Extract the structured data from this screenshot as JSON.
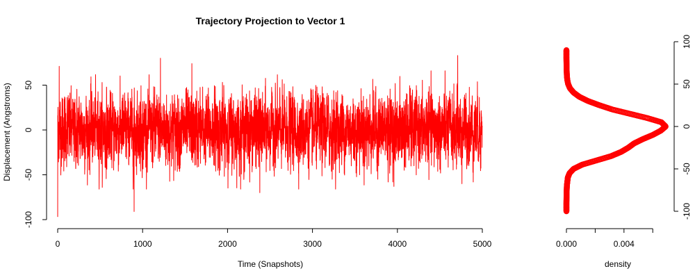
{
  "chart_data": [
    {
      "type": "line",
      "title": "Trajectory Projection to Vector 1",
      "xlabel": "Time (Snapshots)",
      "ylabel": "Displacement (Angstroms)",
      "xlim": [
        0,
        5000
      ],
      "ylim": [
        -100,
        100
      ],
      "x_ticks": [
        0,
        1000,
        2000,
        3000,
        4000,
        5000
      ],
      "y_ticks": [
        -100,
        -50,
        0,
        50
      ],
      "grid": false,
      "series": [
        {
          "color": "#ff0000",
          "n_points": 5000,
          "summary": {
            "min": -97,
            "max": 83,
            "mean": 0,
            "sd": 20
          },
          "extremes": [
            {
              "x": 0,
              "y": -97
            },
            {
              "x": 18,
              "y": 71
            },
            {
              "x": 900,
              "y": -91
            },
            {
              "x": 1210,
              "y": 80
            },
            {
              "x": 1580,
              "y": 74
            },
            {
              "x": 2380,
              "y": -70
            },
            {
              "x": 4710,
              "y": 83
            },
            {
              "x": 4760,
              "y": -60
            },
            {
              "x": 4995,
              "y": 0
            }
          ]
        }
      ]
    },
    {
      "type": "scatter",
      "title": "",
      "xlabel": "density",
      "ylabel": "",
      "xlim": [
        0,
        0.0071
      ],
      "ylim": [
        -100,
        100
      ],
      "x_ticks": [
        0,
        0.002,
        0.004,
        0.006
      ],
      "x_tick_labels": [
        "0.000",
        "",
        "0.004",
        ""
      ],
      "y_ticks": [
        -100,
        -50,
        0,
        50,
        100
      ],
      "y_axis_side": "right",
      "grid": false,
      "series": [
        {
          "color": "#ff0000",
          "y_values": [
            -100,
            -90,
            -80,
            -70,
            -60,
            -55,
            -50,
            -45,
            -40,
            -35,
            -30,
            -25,
            -20,
            -15,
            -10,
            -5,
            0,
            5,
            10,
            15,
            20,
            25,
            30,
            35,
            40,
            45,
            50,
            55,
            60,
            70,
            80,
            90
          ],
          "density_values": [
            0.0,
            0.0,
            1e-05,
            3e-05,
            0.0001,
            0.00022,
            0.0005,
            0.0011,
            0.0021,
            0.0031,
            0.0038,
            0.0043,
            0.0047,
            0.0053,
            0.006,
            0.00655,
            0.0069,
            0.0066,
            0.0056,
            0.0044,
            0.0032,
            0.0023,
            0.0015,
            0.0009,
            0.0005,
            0.00025,
            0.00012,
            6e-05,
            3e-05,
            1e-05,
            0.0,
            0.0
          ]
        }
      ]
    }
  ]
}
